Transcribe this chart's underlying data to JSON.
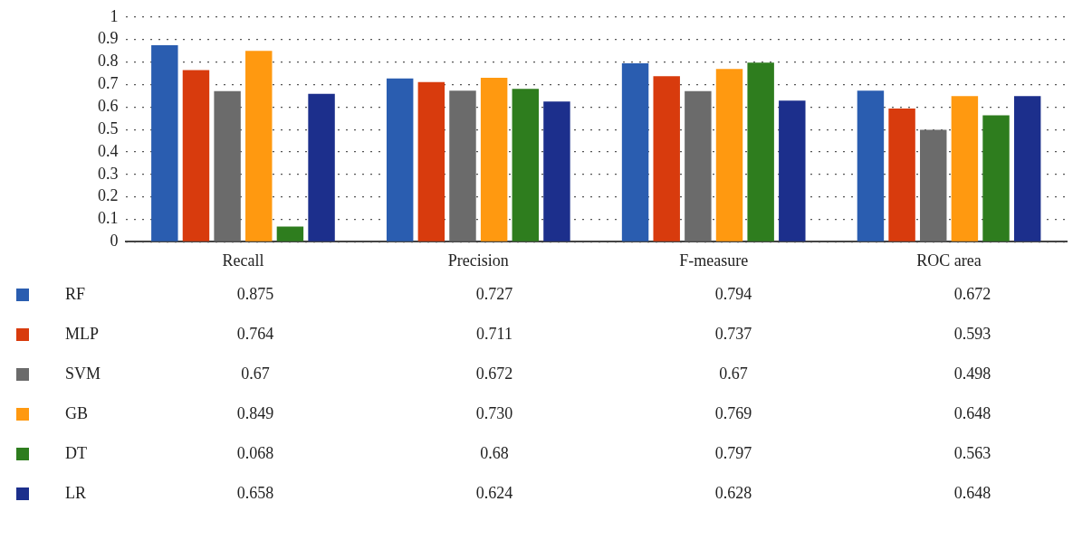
{
  "chart_data": {
    "type": "bar",
    "categories": [
      "Recall",
      "Precision",
      "F-measure",
      "ROC area"
    ],
    "series": [
      {
        "name": "RF",
        "color": "#2a5db0",
        "values": [
          0.875,
          0.727,
          0.794,
          0.672
        ],
        "value_labels": [
          "0.875",
          "0.727",
          "0.794",
          "0.672"
        ]
      },
      {
        "name": "MLP",
        "color": "#d83b0d",
        "values": [
          0.764,
          0.711,
          0.737,
          0.593
        ],
        "value_labels": [
          "0.764",
          "0.711",
          "0.737",
          "0.593"
        ]
      },
      {
        "name": "SVM",
        "color": "#6b6b6b",
        "values": [
          0.67,
          0.672,
          0.67,
          0.498
        ],
        "value_labels": [
          "0.67",
          "0.672",
          "0.67",
          "0.498"
        ]
      },
      {
        "name": "GB",
        "color": "#ff9910",
        "values": [
          0.849,
          0.73,
          0.769,
          0.648
        ],
        "value_labels": [
          "0.849",
          "0.730",
          "0.769",
          "0.648"
        ]
      },
      {
        "name": "DT",
        "color": "#2e7d1e",
        "values": [
          0.068,
          0.68,
          0.797,
          0.563
        ],
        "value_labels": [
          "0.068",
          "0.68",
          "0.797",
          "0.563"
        ]
      },
      {
        "name": "LR",
        "color": "#1c2f8c",
        "values": [
          0.658,
          0.624,
          0.628,
          0.648
        ],
        "value_labels": [
          "0.658",
          "0.624",
          "0.628",
          "0.648"
        ]
      }
    ],
    "ylim": [
      0,
      1
    ],
    "yticks": [
      0,
      0.1,
      0.2,
      0.3,
      0.4,
      0.5,
      0.6,
      0.7,
      0.8,
      0.9,
      1
    ],
    "grid": "y",
    "legend": "bottom"
  }
}
